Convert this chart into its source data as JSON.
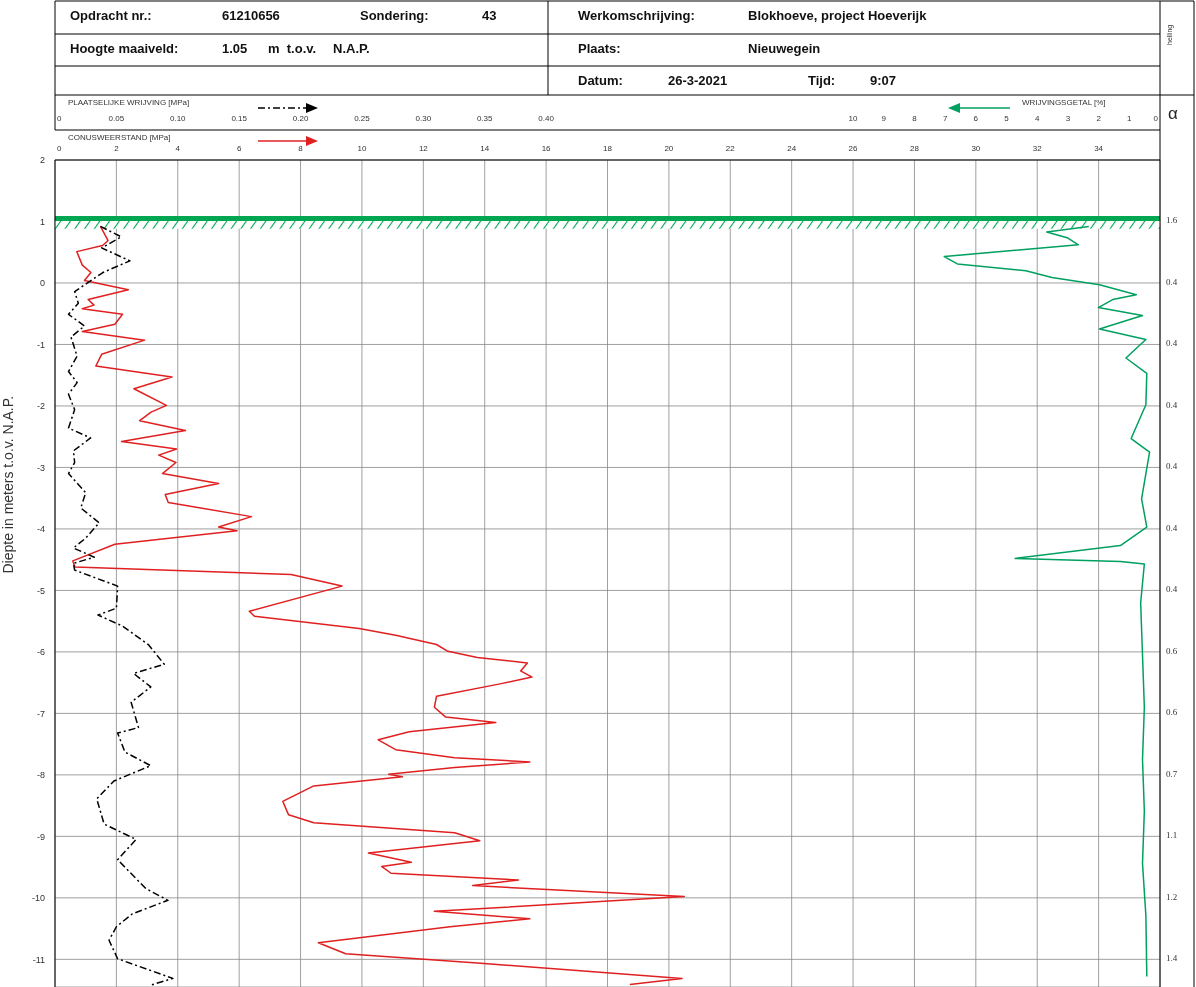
{
  "chart_data": [
    {
      "type": "line",
      "xlabel": "CONUSWEERSTAND [MPa]",
      "x2label": "PLAATSELIJKE WRIJVING [MPa]",
      "ylabel": "Diepte in meters t.o.v.    N.A.P.",
      "xlim": [
        0,
        36
      ],
      "xticks": [
        0,
        2,
        4,
        6,
        8,
        10,
        12,
        14,
        16,
        18,
        20,
        22,
        24,
        26,
        28,
        30,
        32,
        34
      ],
      "x2lim": [
        0,
        0.9
      ],
      "x2ticks": [
        0,
        {
          "value": 0.05,
          "label": "0.05"
        },
        {
          "value": 0.1,
          "label": "0.10"
        },
        {
          "value": 0.15,
          "label": "0.15"
        },
        {
          "value": 0.2,
          "label": "0.20"
        },
        {
          "value": 0.25,
          "label": "0.25"
        },
        {
          "value": 0.3,
          "label": "0.30"
        },
        {
          "value": 0.35,
          "label": "0.35"
        },
        {
          "value": 0.4,
          "label": "0.40"
        }
      ],
      "ylim": [
        -11.45,
        2
      ],
      "yticks": [
        2,
        1,
        0,
        -1,
        -2,
        -3,
        -4,
        -5,
        -6,
        -7,
        -8,
        -9,
        -10,
        -11
      ],
      "grid": true,
      "marker": "none",
      "ref_lines": [
        {
          "axis": "y",
          "value": 1.05,
          "color": "#00a651"
        }
      ],
      "bands": [
        {
          "axis": "y",
          "from": 0.88,
          "to": 1.05,
          "color": "#00a651"
        }
      ],
      "series": [
        {
          "color": "#e02020",
          "line_style": "solid",
          "x": [
            1.48,
            1.73,
            1.55,
            0.71,
            0.89,
            1.17,
            0.96,
            2.39,
            1.08,
            1.27,
            0.89,
            2.2,
            1.95,
            0.89,
            2.92,
            1.52,
            1.33,
            3.81,
            2.57,
            3.63,
            3.13,
            2.76,
            4.25,
            2.17,
            3.96,
            3.38,
            3.94,
            3.5,
            5.33,
            3.59,
            3.69,
            6.4,
            5.33,
            5.93,
            1.95,
            0.58,
            0.65,
            7.69,
            9.35,
            6.33,
            6.5,
            9.91,
            11.1,
            12.43,
            12.8,
            13.76,
            15.39,
            15.17,
            15.54,
            14.5,
            12.43,
            12.36,
            12.73,
            14.36,
            11.54,
            10.53,
            11.1,
            13.02,
            15.47,
            13.02,
            10.87,
            11.32,
            8.43,
            7.42,
            7.61,
            8.43,
            13.02,
            13.84,
            10.21,
            11.61,
            10.64,
            10.95,
            15.1,
            13.61,
            20.5,
            12.36,
            15.47,
            12.87,
            8.58,
            9.47,
            13.76,
            20.43,
            18.73
          ],
          "values": [
            0.92,
            0.69,
            0.61,
            0.51,
            0.29,
            0.17,
            0.04,
            -0.11,
            -0.27,
            -0.36,
            -0.42,
            -0.51,
            -0.67,
            -0.79,
            -0.93,
            -1.16,
            -1.35,
            -1.53,
            -1.72,
            -1.99,
            -2.1,
            -2.24,
            -2.4,
            -2.58,
            -2.7,
            -2.8,
            -2.92,
            -3.1,
            -3.26,
            -3.44,
            -3.57,
            -3.8,
            -3.97,
            -4.03,
            -4.25,
            -4.52,
            -4.62,
            -4.74,
            -4.93,
            -5.34,
            -5.42,
            -5.62,
            -5.73,
            -5.88,
            -5.99,
            -6.09,
            -6.18,
            -6.31,
            -6.41,
            -6.52,
            -6.72,
            -6.9,
            -7.06,
            -7.15,
            -7.3,
            -7.43,
            -7.59,
            -7.72,
            -7.79,
            -7.88,
            -7.99,
            -8.03,
            -8.18,
            -8.43,
            -8.65,
            -8.78,
            -8.94,
            -9.07,
            -9.27,
            -9.42,
            -9.49,
            -9.6,
            -9.71,
            -9.8,
            -9.98,
            -10.22,
            -10.34,
            -10.47,
            -10.73,
            -10.91,
            -11.06,
            -11.31,
            -11.41
          ]
        },
        {
          "axis": "x2",
          "color": "#000000",
          "line_style": "dashed",
          "x": [
            0.037,
            0.054,
            0.038,
            0.061,
            0.039,
            0.016,
            0.019,
            0.011,
            0.024,
            0.013,
            0.018,
            0.011,
            0.018,
            0.011,
            0.016,
            0.011,
            0.029,
            0.015,
            0.016,
            0.011,
            0.025,
            0.021,
            0.036,
            0.025,
            0.015,
            0.032,
            0.015,
            0.016,
            0.051,
            0.05,
            0.035,
            0.055,
            0.076,
            0.089,
            0.064,
            0.078,
            0.062,
            0.068,
            0.051,
            0.057,
            0.078,
            0.048,
            0.034,
            0.04,
            0.066,
            0.051,
            0.074,
            0.092,
            0.063,
            0.05,
            0.044,
            0.051,
            0.096,
            0.078
          ],
          "values": [
            0.92,
            0.75,
            0.57,
            0.36,
            0.17,
            -0.14,
            -0.33,
            -0.51,
            -0.7,
            -0.88,
            -1.19,
            -1.44,
            -1.62,
            -1.81,
            -2.06,
            -2.36,
            -2.52,
            -2.73,
            -2.92,
            -3.1,
            -3.41,
            -3.66,
            -3.9,
            -4.15,
            -4.31,
            -4.46,
            -4.56,
            -4.67,
            -4.93,
            -5.29,
            -5.4,
            -5.58,
            -5.88,
            -6.2,
            -6.35,
            -6.57,
            -6.82,
            -7.23,
            -7.32,
            -7.63,
            -7.85,
            -8.1,
            -8.39,
            -8.8,
            -9.05,
            -9.38,
            -9.85,
            -10.04,
            -10.26,
            -10.47,
            -10.69,
            -10.99,
            -11.31,
            -11.42
          ]
        }
      ],
      "annotations": [
        "Opdracht nr.:",
        "61210656",
        "Sondering:",
        "43",
        "Werkomschrijving:",
        "Blokhoeve, project Hoeverijk",
        "Hoogte maaiveld:",
        "1.05",
        "m  t.o.v.",
        "N.A.P.",
        "Plaats:",
        "Nieuwegein",
        "Datum:",
        "26-3-2021",
        "Tijd:",
        "9:07",
        "helling",
        "α",
        "1.6",
        "0.4",
        "0.4",
        "0.4",
        "0.4",
        "0.4",
        "0.4",
        "0.6",
        "0.6",
        "0.7",
        "1.1",
        "1.2",
        "1.4"
      ]
    },
    {
      "type": "line",
      "xlabel": "WRIJVINGSGETAL [%]",
      "xlim": [
        36,
        0
      ],
      "xticks": [
        10,
        9,
        8,
        7,
        6,
        5,
        4,
        3,
        2,
        1,
        0
      ],
      "ylim": [
        -11.45,
        2
      ],
      "tick_labels": "x",
      "marker": "none",
      "series": [
        {
          "color": "#00a060",
          "line_style": "solid",
          "x": [
            2.32,
            3.69,
            3.0,
            2.66,
            7.03,
            6.6,
            4.37,
            3.52,
            1.97,
            0.77,
            1.54,
            2.01,
            0.57,
            1.97,
            0.46,
            1.11,
            0.43,
            0.46,
            0.94,
            0.34,
            0.6,
            0.43,
            1.29,
            4.72,
            1.29,
            0.51,
            0.63,
            0.57,
            0.51,
            0.57,
            0.51,
            0.57,
            0.46,
            0.43
          ],
          "values": [
            0.92,
            0.83,
            0.73,
            0.62,
            0.43,
            0.31,
            0.2,
            0.09,
            -0.03,
            -0.19,
            -0.27,
            -0.4,
            -0.53,
            -0.75,
            -0.92,
            -1.22,
            -1.47,
            -1.98,
            -2.53,
            -2.75,
            -3.51,
            -3.97,
            -4.27,
            -4.48,
            -4.53,
            -4.57,
            -5.2,
            -6.05,
            -6.9,
            -7.75,
            -8.59,
            -9.44,
            -10.29,
            -11.28
          ]
        }
      ]
    }
  ]
}
